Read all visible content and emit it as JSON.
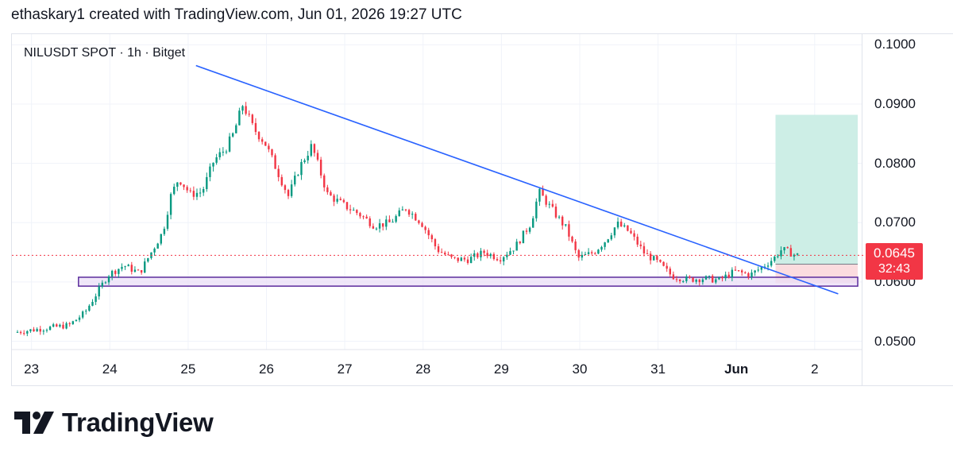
{
  "header": {
    "credit": "ethaskary1 created with TradingView.com, Jun 01, 2026 19:27 UTC"
  },
  "legend": {
    "symbol": "NILUSDT SPOT · 1h · Bitget"
  },
  "price_badge": {
    "price": "0.0645",
    "countdown": "32:43",
    "color": "#f23645"
  },
  "footer": {
    "brand": "TradingView",
    "logo_icon": "tradingview-logo-icon"
  },
  "colors": {
    "up": "#089981",
    "down": "#f23645",
    "trendline": "#2962ff",
    "support_zone_border": "#5b2c9c",
    "support_zone_fill": "#e9ddf7",
    "target_fill": "#cdeee6",
    "stop_fill": "#fbdcdf"
  },
  "chart_data": {
    "type": "candlestick",
    "symbol": "NILUSDT",
    "interval": "1h",
    "exchange": "Bitget",
    "x_ticks": [
      "23",
      "24",
      "25",
      "26",
      "27",
      "28",
      "29",
      "30",
      "31",
      "Jun",
      "2"
    ],
    "y_ticks": [
      "0.0500",
      "0.0600",
      "0.0700",
      "0.0800",
      "0.0900",
      "0.1000"
    ],
    "ylim": [
      0.0486,
      0.1018
    ],
    "xlim_days": [
      22.75,
      33.6
    ],
    "last_price": 0.0645,
    "daily_path": [
      [
        22.8,
        0.0515
      ],
      [
        23.2,
        0.0522
      ],
      [
        23.5,
        0.0527
      ],
      [
        23.7,
        0.0548
      ],
      [
        23.85,
        0.058
      ],
      [
        24.0,
        0.0612
      ],
      [
        24.2,
        0.0628
      ],
      [
        24.4,
        0.0615
      ],
      [
        24.55,
        0.065
      ],
      [
        24.7,
        0.0685
      ],
      [
        24.8,
        0.0745
      ],
      [
        24.9,
        0.0775
      ],
      [
        25.05,
        0.0748
      ],
      [
        25.2,
        0.0752
      ],
      [
        25.35,
        0.0805
      ],
      [
        25.5,
        0.0825
      ],
      [
        25.6,
        0.085
      ],
      [
        25.72,
        0.09
      ],
      [
        25.85,
        0.086
      ],
      [
        26.0,
        0.0835
      ],
      [
        26.15,
        0.079
      ],
      [
        26.3,
        0.0745
      ],
      [
        26.45,
        0.0795
      ],
      [
        26.6,
        0.083
      ],
      [
        26.8,
        0.0748
      ],
      [
        27.0,
        0.073
      ],
      [
        27.2,
        0.0715
      ],
      [
        27.4,
        0.0695
      ],
      [
        27.6,
        0.07
      ],
      [
        27.8,
        0.0725
      ],
      [
        28.0,
        0.07
      ],
      [
        28.2,
        0.0655
      ],
      [
        28.4,
        0.0638
      ],
      [
        28.6,
        0.0638
      ],
      [
        28.8,
        0.065
      ],
      [
        29.0,
        0.064
      ],
      [
        29.2,
        0.066
      ],
      [
        29.4,
        0.07
      ],
      [
        29.5,
        0.0752
      ],
      [
        29.65,
        0.0725
      ],
      [
        29.85,
        0.069
      ],
      [
        30.0,
        0.064
      ],
      [
        30.2,
        0.065
      ],
      [
        30.35,
        0.067
      ],
      [
        30.5,
        0.0698
      ],
      [
        30.65,
        0.0685
      ],
      [
        30.85,
        0.0648
      ],
      [
        31.0,
        0.0635
      ],
      [
        31.2,
        0.061
      ],
      [
        31.4,
        0.0604
      ],
      [
        31.6,
        0.0606
      ],
      [
        31.8,
        0.0603
      ],
      [
        32.0,
        0.0618
      ],
      [
        32.2,
        0.0612
      ],
      [
        32.35,
        0.0625
      ],
      [
        32.5,
        0.064
      ],
      [
        32.6,
        0.0655
      ],
      [
        32.7,
        0.065
      ],
      [
        32.78,
        0.0645
      ]
    ],
    "annotations": {
      "trendline": {
        "from": [
          25.1,
          0.0965
        ],
        "to": [
          33.3,
          0.058
        ]
      },
      "support_zone": {
        "x_from": 23.6,
        "x_to": 33.55,
        "y_low": 0.0593,
        "y_high": 0.0608
      },
      "long_position": {
        "x_from": 32.5,
        "x_to": 33.55,
        "entry": 0.063,
        "target": 0.0882,
        "stop": 0.0598
      },
      "last_price_line": 0.0645
    }
  }
}
